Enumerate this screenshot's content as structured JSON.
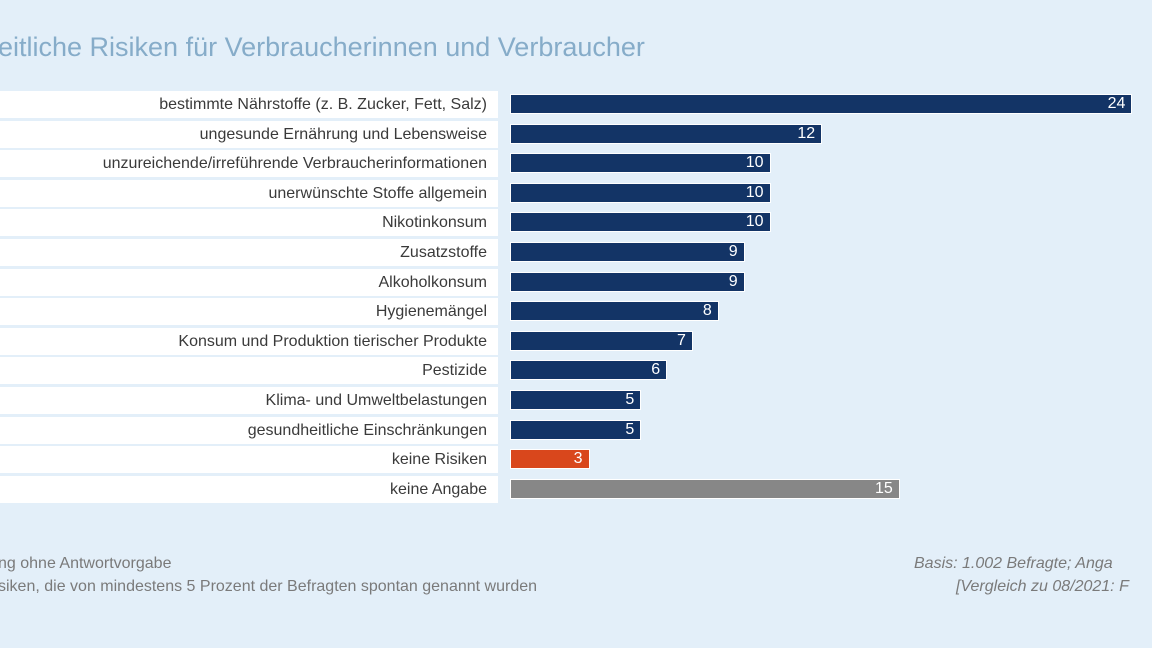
{
  "chart_data": {
    "type": "bar",
    "orientation": "horizontal",
    "title": "eitliche Risiken für Verbraucherinnen und Verbraucher",
    "categories": [
      "bestimmte Nährstoffe (z. B. Zucker, Fett, Salz)",
      "ungesunde Ernährung und Lebensweise",
      "unzureichende/irreführende Verbraucherinformationen",
      "unerwünschte Stoffe allgemein",
      "Nikotinkonsum",
      "Zusatzstoffe",
      "Alkoholkonsum",
      "Hygienemängel",
      "Konsum und Produktion tierischer Produkte",
      "Pestizide",
      "Klima- und Umweltbelastungen",
      "gesundheitliche Einschränkungen",
      "keine Risiken",
      "keine Angabe"
    ],
    "values": [
      24,
      12,
      10,
      10,
      10,
      9,
      9,
      8,
      7,
      6,
      5,
      5,
      3,
      15
    ],
    "colors": [
      "#133466",
      "#133466",
      "#133466",
      "#133466",
      "#133466",
      "#133466",
      "#133466",
      "#133466",
      "#133466",
      "#133466",
      "#133466",
      "#133466",
      "#d9471c",
      "#878787"
    ],
    "data_labels": true,
    "grid": false,
    "xlim": [
      0,
      24
    ]
  },
  "footer": {
    "left_line1": "ng ohne Antwortvorgabe",
    "left_line2": "siken, die von mindestens 5 Prozent der Befragten spontan genannt wurden",
    "right_line1": "Basis: 1.002 Befragte; Anga",
    "right_line2": "[Vergleich zu 08/2021: F"
  },
  "colors": {
    "background": "#e3eff9",
    "title": "#86acc9"
  }
}
